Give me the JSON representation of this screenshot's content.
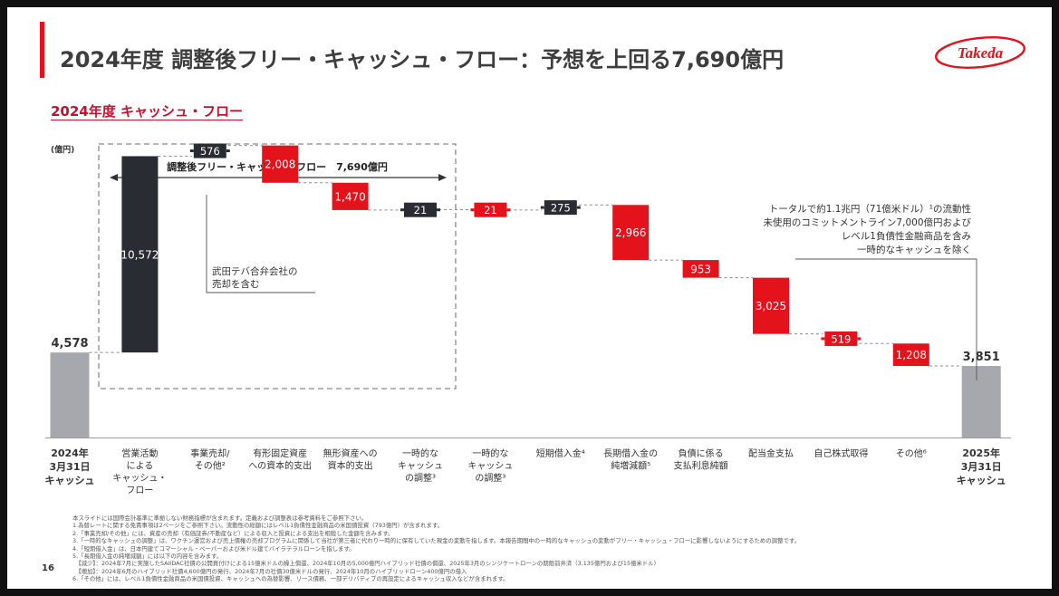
{
  "title": "2024年度 調整後フリー・キャッシュ・フロー：予想を上回る7,690億円",
  "subtitle": "2024年度 キャッシュ・フロー",
  "logo_text": "Takeda",
  "page_number": "16",
  "colors": {
    "total": "#a6a8ad",
    "positive": "#2a2c33",
    "negative": "#e3121b",
    "brand": "#e3121b"
  },
  "chart_data": {
    "type": "waterfall",
    "unit_label": "(億円)",
    "steps": [
      {
        "kind": "total",
        "value": 4578,
        "label": "4,578",
        "category": [
          "2024年",
          "3月31日",
          "キャッシュ"
        ]
      },
      {
        "kind": "increase",
        "value": 10572,
        "label": "10,572",
        "category": [
          "営業活動",
          "による",
          "キャッシュ・",
          "フロー"
        ]
      },
      {
        "kind": "increase",
        "value": 576,
        "label": "576",
        "category": [
          "事業売却/",
          "その他²"
        ]
      },
      {
        "kind": "decrease",
        "value": 2008,
        "label": "2,008",
        "category": [
          "有形固定資産",
          "への資本的支出"
        ]
      },
      {
        "kind": "decrease",
        "value": 1470,
        "label": "1,470",
        "category": [
          "無形資産への",
          "資本的支出"
        ]
      },
      {
        "kind": "increase",
        "value": 21,
        "label": "21",
        "category": [
          "一時的な",
          "キャッシュ",
          "の調整³"
        ]
      },
      {
        "kind": "decrease",
        "value": 21,
        "label": "21",
        "category": [
          "一時的な",
          "キャッシュ",
          "の調整³"
        ]
      },
      {
        "kind": "increase",
        "value": 275,
        "label": "275",
        "category": [
          "短期借入金⁴"
        ]
      },
      {
        "kind": "decrease",
        "value": 2966,
        "label": "2,966",
        "category": [
          "長期借入金の",
          "純増減額⁵"
        ]
      },
      {
        "kind": "decrease",
        "value": 953,
        "label": "953",
        "category": [
          "負債に係る",
          "支払利息純額"
        ]
      },
      {
        "kind": "decrease",
        "value": 3025,
        "label": "3,025",
        "category": [
          "配当金支払"
        ]
      },
      {
        "kind": "decrease",
        "value": 519,
        "label": "519",
        "category": [
          "自己株式取得"
        ]
      },
      {
        "kind": "decrease",
        "value": 1208,
        "label": "1,208",
        "category": [
          "その他⁶"
        ]
      },
      {
        "kind": "total",
        "value": 3851,
        "label": "3,851",
        "category": [
          "2025年",
          "3月31日",
          "キャッシュ"
        ]
      }
    ],
    "fcf_bracket_label": "調整後フリー・キャッシュ・フロー　7,690億円",
    "annotations": {
      "divestiture": [
        "武田テバ合弁会社の",
        "売却を含む"
      ],
      "liquidity": [
        "トータルで約1.1兆円（71億米ドル）¹の流動性",
        "未使用のコミットメントライン7,000億円および",
        "レベル1負債性金融商品を含み",
        "一時的なキャッシュを除く"
      ]
    }
  },
  "footnotes": [
    "本スライドには国際会計基準に準拠しない財務指標が含まれます。定義および調整表は参考資料をご参照下さい。",
    "1.為替レートに関する免責事項は2ページをご参照下さい。流動性の総額にはレベル1負債性金融商品の米国債投資（793億円）が含まれます。",
    "2.「事業売却/その他」には、資産の売却（有価証券/不動産など）による収入と投資による支出を相殺した金額を含みます。",
    "3.「一時的なキャッシュの調整」は、ワクチン運営および売上債権の売却プログラムに関係して当社が第三者に代わり一時的に保有していた現金の変動を指します。本報告期間中の一時的なキャッシュの変動がフリー・キャッシュ・フローに影響しないようにするための調整です。",
    "4.「短期借入金」は、日本円建てコマーシャル・ペーパーおよび米ドル建てバイラテラルローンを指します。",
    "5.「長期借入金の純増減額」には以下の内容を含みます。",
    "　【減少】：2024年7月に実施したSAIIDAC社債の公開買付けによる15億米ドルの繰上償還、2024年10月の5,000億円ハイブリッド社債の償還、2025年3月のシンジケートローンの期限前弁済（3,135億円および15億米ドル）",
    "　【増加】：2024年6月のハイブリッド社債4,600億円の発行、2024年7月の社債30億米ドルの発行、2024年10月のハイブリッドローン400億円の借入",
    "6.「その他」には、レベル1負債性金融商品の米国債投資、キャッシュへの為替影響、リース債務、一部デリバティブの再設定によるキャッシュ収入などが含まれます。"
  ]
}
